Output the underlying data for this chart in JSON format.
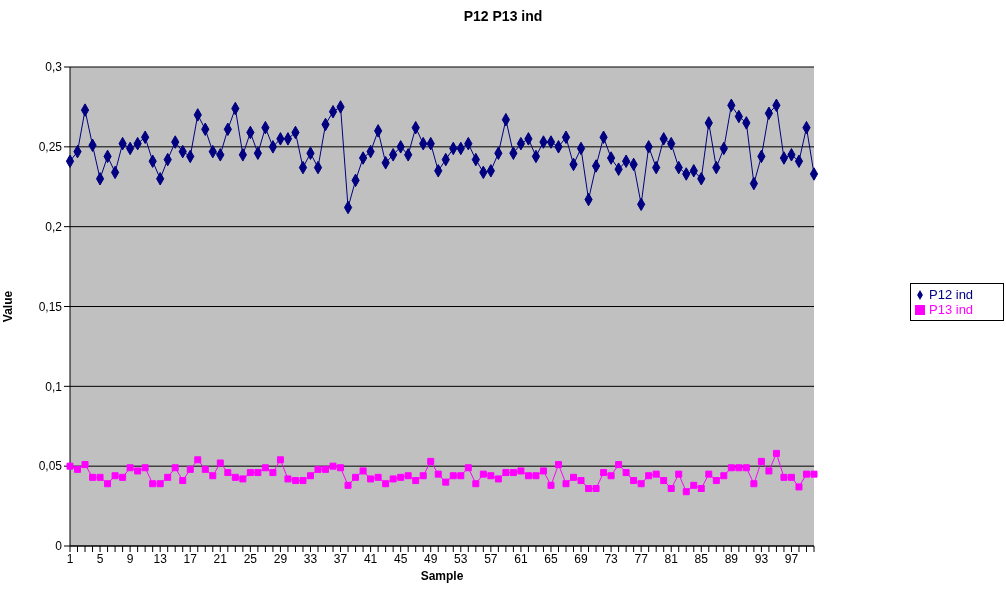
{
  "chart_data": {
    "type": "line",
    "title": "P12 P13 ind",
    "xlabel": "Sample",
    "ylabel": "Value",
    "categories": [
      "1",
      null,
      null,
      null,
      "5",
      null,
      null,
      null,
      "9",
      null,
      null,
      null,
      "13",
      null,
      null,
      null,
      "17",
      null,
      null,
      null,
      "21",
      null,
      null,
      null,
      "25",
      null,
      null,
      null,
      "29",
      null,
      null,
      null,
      "33",
      null,
      null,
      null,
      "37",
      null,
      null,
      null,
      "41",
      null,
      null,
      null,
      "45",
      null,
      null,
      null,
      "49",
      null,
      null,
      null,
      "53",
      null,
      null,
      null,
      "57",
      null,
      null,
      null,
      "61",
      null,
      null,
      null,
      "65",
      null,
      null,
      null,
      "69",
      null,
      null,
      null,
      "73",
      null,
      null,
      null,
      "77",
      null,
      null,
      null,
      "81",
      null,
      null,
      null,
      "85",
      null,
      null,
      null,
      "89",
      null,
      null,
      null,
      "93",
      null,
      null,
      null,
      "97",
      null,
      null,
      null
    ],
    "series": [
      {
        "name": "P12 ind",
        "color": "#000080",
        "marker": "diamond",
        "values": [
          0.241,
          0.247,
          0.273,
          0.251,
          0.23,
          0.244,
          0.234,
          0.252,
          0.249,
          0.252,
          0.256,
          0.241,
          0.23,
          0.242,
          0.253,
          0.247,
          0.244,
          0.27,
          0.261,
          0.247,
          0.245,
          0.261,
          0.274,
          0.245,
          0.259,
          0.246,
          0.262,
          0.25,
          0.255,
          0.255,
          0.259,
          0.237,
          0.246,
          0.237,
          0.264,
          0.272,
          0.275,
          0.212,
          0.229,
          0.243,
          0.247,
          0.26,
          0.24,
          0.245,
          0.25,
          0.245,
          0.262,
          0.252,
          0.252,
          0.235,
          0.242,
          0.249,
          0.249,
          0.252,
          0.242,
          0.234,
          0.235,
          0.246,
          0.267,
          0.246,
          0.252,
          0.255,
          0.244,
          0.253,
          0.253,
          0.25,
          0.256,
          0.239,
          0.249,
          0.217,
          0.238,
          0.256,
          0.243,
          0.236,
          0.241,
          0.239,
          0.214,
          0.25,
          0.237,
          0.255,
          0.252,
          0.237,
          0.233,
          0.235,
          0.23,
          0.265,
          0.237,
          0.249,
          0.276,
          0.269,
          0.265,
          0.227,
          0.244,
          0.271,
          0.276,
          0.243,
          0.245,
          0.241,
          0.262,
          0.233
        ]
      },
      {
        "name": "P13 ind",
        "color": "#ff00ff",
        "marker": "square",
        "values": [
          0.05,
          0.048,
          0.051,
          0.043,
          0.043,
          0.039,
          0.044,
          0.043,
          0.049,
          0.047,
          0.049,
          0.039,
          0.039,
          0.043,
          0.049,
          0.041,
          0.048,
          0.054,
          0.048,
          0.044,
          0.052,
          0.046,
          0.043,
          0.042,
          0.046,
          0.046,
          0.049,
          0.046,
          0.054,
          0.042,
          0.041,
          0.041,
          0.044,
          0.048,
          0.048,
          0.05,
          0.049,
          0.038,
          0.043,
          0.047,
          0.042,
          0.043,
          0.039,
          0.042,
          0.043,
          0.044,
          0.041,
          0.044,
          0.053,
          0.045,
          0.04,
          0.044,
          0.044,
          0.049,
          0.039,
          0.045,
          0.044,
          0.042,
          0.046,
          0.046,
          0.047,
          0.044,
          0.044,
          0.047,
          0.038,
          0.051,
          0.039,
          0.043,
          0.041,
          0.036,
          0.036,
          0.046,
          0.044,
          0.051,
          0.046,
          0.041,
          0.039,
          0.044,
          0.045,
          0.041,
          0.036,
          0.045,
          0.034,
          0.038,
          0.036,
          0.045,
          0.041,
          0.044,
          0.049,
          0.049,
          0.049,
          0.039,
          0.053,
          0.047,
          0.058,
          0.043,
          0.043,
          0.037,
          0.045,
          0.045
        ]
      }
    ],
    "ylim": [
      0,
      0.3
    ],
    "yticks": [
      0,
      {
        "value": 0.05,
        "label": "0,05"
      },
      {
        "value": 0.1,
        "label": "0,1"
      },
      {
        "value": 0.15,
        "label": "0,15"
      },
      {
        "value": 0.2,
        "label": "0,2"
      },
      {
        "value": 0.25,
        "label": "0,25"
      },
      {
        "value": 0.3,
        "label": "0,3"
      }
    ],
    "grid": "y",
    "legend": "right",
    "line_style": "solid"
  }
}
